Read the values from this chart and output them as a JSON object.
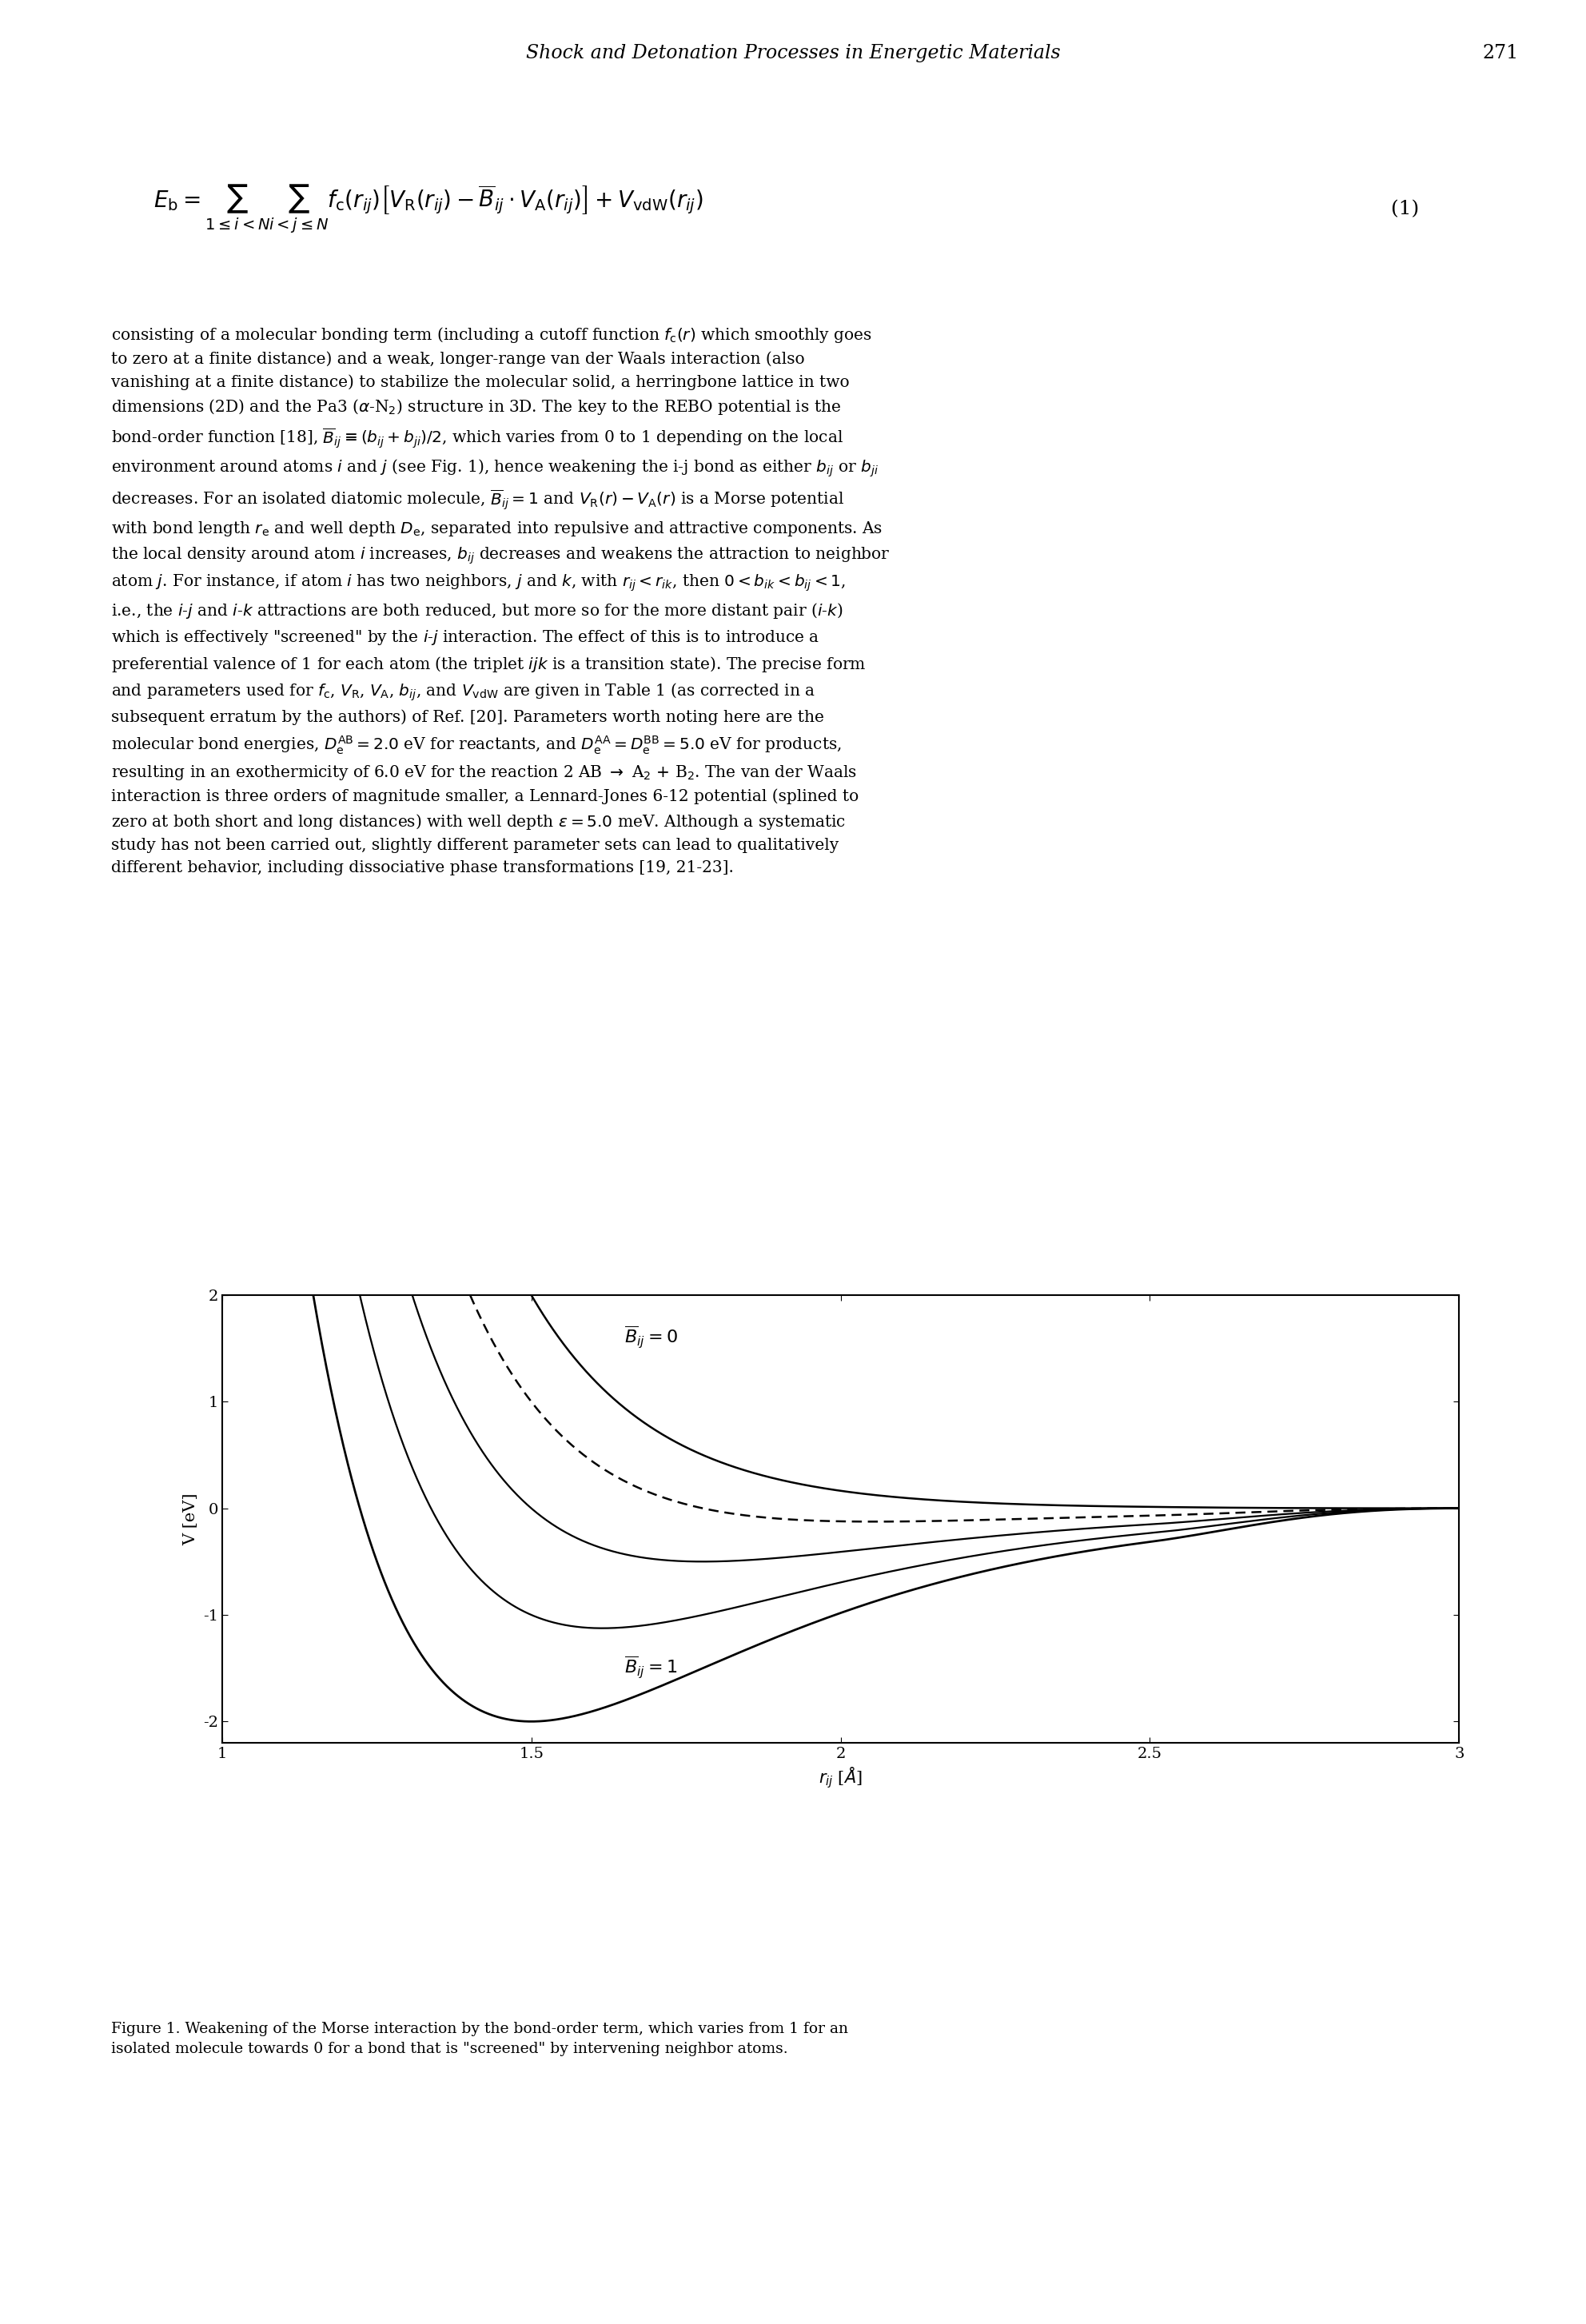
{
  "title_page": "Shock and Detonation Processes in Energetic Materials",
  "page_number": "271",
  "equation": "E_b = \\sum_{1\\leq i<N} \\sum_{i<j\\leq N} f_c(r_{ij})\\left[V_R(r_{ij}) - \\overline{B}_{ij}\\cdot V_A(r_{ij})\\right] + V_{vdW}(r_{ij})",
  "eq_number": "(1)",
  "paragraph_text": "consisting of a molecular bonding term (including a cutoff function fc(r) which smoothly goes to zero at a finite distance) and a weak, longer-range van der Waals interaction (also vanishing at a finite distance) to stabilize the molecular solid, a herringbone lattice in two dimensions (2D) and the Pa3 (α-N2) structure in 3D. The key to the REBO potential is the bond-order function [18], Bij ≡ (bij + bji)/2, which varies from 0 to 1 depending on the local environment around atoms i and j (see Fig. 1), hence weakening the i-j bond as either bij or bji decreases. For an isolated diatomic molecule, Bij = 1 and VR(r) − VA(r) is a Morse potential with bond length re and well depth De, separated into repulsive and attractive components. As the local density around atom i increases, bij decreases and weakens the attraction to neighbor atom j. For instance, if atom i has two neighbors, j and k, with rij < rik, then 0 < bik < bij < 1, i.e., the i-j and i-k attractions are both reduced, but more so for the more distant pair (i-k) which is effectively “screened” by the i-j interaction. The effect of this is to introduce a preferential valence of 1 for each atom (the triplet ijk is a transition state). The precise form and parameters used for fc, VR, VA, bij, and VvdW are given in Table 1 (as corrected in a subsequent erratum by the authors) of Ref. [20]. Parameters worth noting here are the molecular bond energies, De^AB = 2.0 eV for reactants, and De^AA = De^BB = 5.0 eV for products, resulting in an exothermicity of 6.0 eV for the reaction 2 AB → A2 + B2. The van der Waals interaction is three orders of magnitude smaller, a Lennard-Jones 6-12 potential (splined to zero at both short and long distances) with well depth ε = 5.0 meV. Although a systematic study has not been carried out, slightly different parameter sets can lead to qualitatively different behavior, including dissociative phase transformations [19, 21-23].",
  "figure_caption": "Figure 1. Weakening of the Morse interaction by the bond-order term, which varies from 1 for an isolated molecule towards 0 for a bond that is \"screened\" by intervening neighbor atoms.",
  "plot": {
    "xlim": [
      1.0,
      3.0
    ],
    "ylim": [
      -2.2,
      2.0
    ],
    "xlabel": "r_{ij} [\\AA]",
    "ylabel": "V [eV]",
    "xticks": [
      1.0,
      1.5,
      2.0,
      2.5,
      3.0
    ],
    "xtick_labels": [
      "1",
      "1.5",
      "2",
      "2.5",
      "3"
    ],
    "yticks": [
      -2,
      -1,
      0,
      1,
      2
    ],
    "ytick_labels": [
      "-2",
      "-1",
      "0",
      "1",
      "2"
    ],
    "label_Bij0": "$\\overline{B}_{ij} = 0$",
    "label_Bij1": "$\\overline{B}_{ij} = 1$",
    "morse_De": 2.0,
    "morse_re": 1.5,
    "morse_alpha": 2.5,
    "cutoff_start": 2.5,
    "cutoff_end": 3.0,
    "background_color": "#ffffff",
    "line_color": "#000000"
  }
}
